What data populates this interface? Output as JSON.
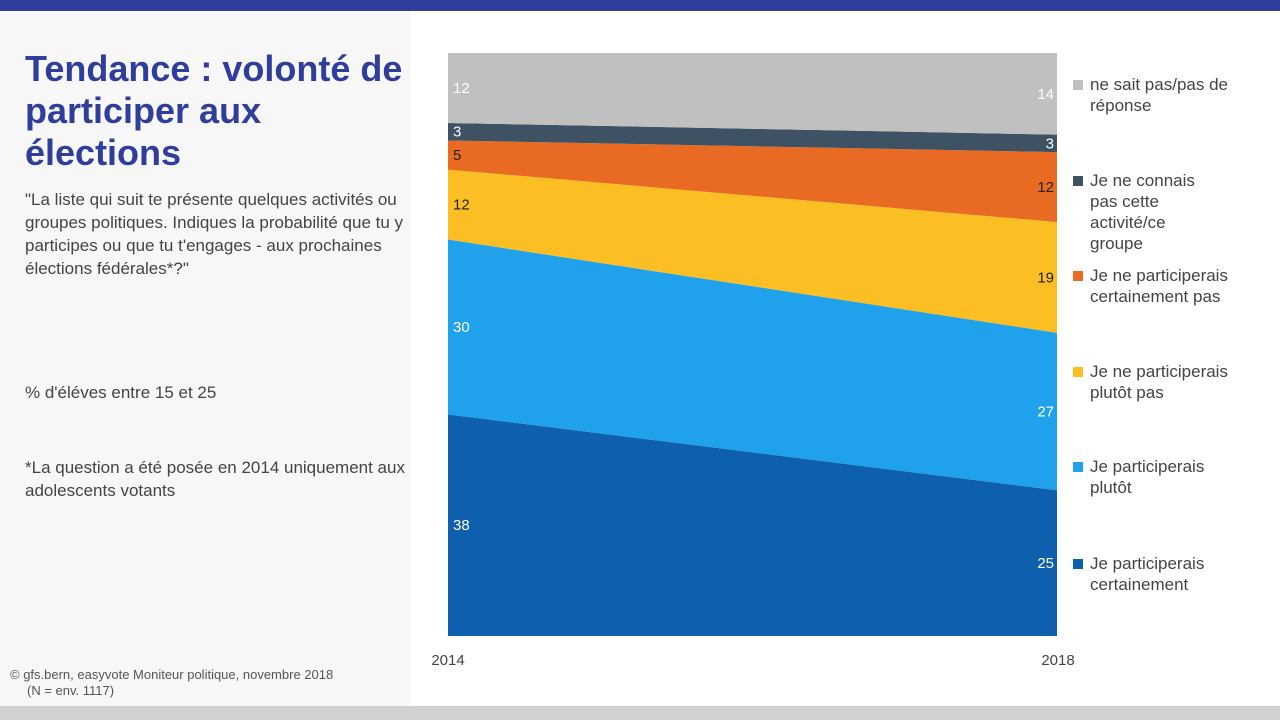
{
  "title": "Tendance : volonté de participer aux élections",
  "question": "\"La liste qui suit te présente quelques activités ou groupes politiques. Indiques la probabilité que tu y participes ou que tu t'engages - aux prochaines élections fédérales*?\"",
  "unit": "% d'éléves entre 15 et 25",
  "note": "*La question a été posée en 2014 uniquement aux adolescents votants",
  "source_line1": "©  gfs.bern, easyvote Moniteur politique, novembre 2018",
  "source_line2": "(N = env. 1117)",
  "chart_data": {
    "type": "area",
    "stacked": true,
    "categories": [
      "2014",
      "2018"
    ],
    "ylim": [
      0,
      100
    ],
    "legend_position": "right",
    "series": [
      {
        "name": "Je participerais certainement",
        "values": [
          38,
          25
        ],
        "color": "#0e5fae",
        "label_color": "#ffffff"
      },
      {
        "name": "Je participerais plutôt",
        "values": [
          30,
          27
        ],
        "color": "#1fa2eb",
        "label_color": "#ffffff"
      },
      {
        "name": "Je ne participerais plutôt pas",
        "values": [
          12,
          19
        ],
        "color": "#fbbf24",
        "label_color": "#222222"
      },
      {
        "name": "Je ne participerais certainement pas",
        "values": [
          5,
          12
        ],
        "color": "#e96b23",
        "label_color": "#222222"
      },
      {
        "name": "Je ne connais pas cette activité/ce groupe",
        "values": [
          3,
          3
        ],
        "color": "#3f5264",
        "label_color": "#ffffff"
      },
      {
        "name": "ne sait pas/pas de réponse",
        "values": [
          12,
          14
        ],
        "color": "#c0c0c0",
        "label_color": "#ffffff"
      }
    ]
  }
}
